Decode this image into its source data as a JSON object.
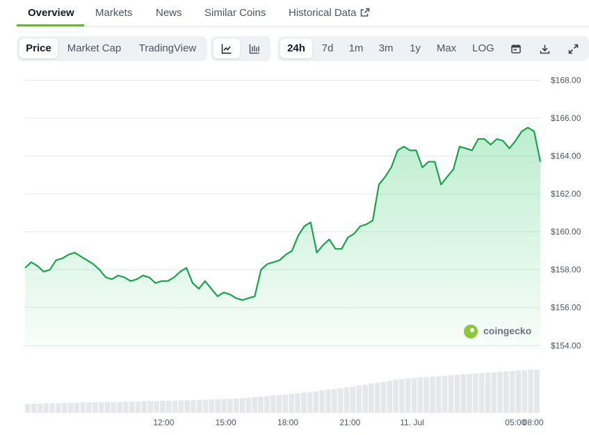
{
  "tabs": [
    {
      "label": "Overview"
    },
    {
      "label": "Markets"
    },
    {
      "label": "News"
    },
    {
      "label": "Similar Coins"
    },
    {
      "label": "Historical Data"
    }
  ],
  "chart_type_tabs": [
    {
      "label": "Price",
      "selected": true
    },
    {
      "label": "Market Cap",
      "selected": false
    },
    {
      "label": "TradingView",
      "selected": false
    }
  ],
  "view_toggle": {
    "line": "line-chart-icon",
    "candle": "candlestick-icon",
    "selected": "line"
  },
  "ranges": [
    {
      "label": "24h",
      "selected": true
    },
    {
      "label": "7d",
      "selected": false
    },
    {
      "label": "1m",
      "selected": false
    },
    {
      "label": "3m",
      "selected": false
    },
    {
      "label": "1y",
      "selected": false
    },
    {
      "label": "Max",
      "selected": false
    },
    {
      "label": "LOG",
      "selected": false
    }
  ],
  "tool_icons": [
    "calendar-icon",
    "download-icon",
    "fullscreen-icon"
  ],
  "watermark": "coingecko",
  "colors": {
    "accent": "#4bcc00",
    "price_line": "#16a34a",
    "volume": "#e5e7eb"
  },
  "chart_data": {
    "type": "line",
    "x_ticks": [
      "12:00",
      "15:00",
      "18:00",
      "21:00",
      "11. Jul",
      "05:00",
      "08:00"
    ],
    "y_ticks": [
      "$154.00",
      "$156.00",
      "$158.00",
      "$160.00",
      "$162.00",
      "$164.00",
      "$166.00",
      "$168.00"
    ],
    "ylim": [
      153.9,
      168.2
    ],
    "x_hours": [
      0,
      0.3,
      0.6,
      0.9,
      1.2,
      1.5,
      1.8,
      2.1,
      2.4,
      2.7,
      3.0,
      3.3,
      3.6,
      3.9,
      4.2,
      4.5,
      4.8,
      5.1,
      5.4,
      5.7,
      6.0,
      6.3,
      6.6,
      6.9,
      7.2,
      7.5,
      7.8,
      8.1,
      8.4,
      8.7,
      9.0,
      9.3,
      9.6,
      9.9,
      10.2,
      10.5,
      10.8,
      11.1,
      11.4,
      11.7,
      12.0,
      12.3,
      12.6,
      12.9,
      13.2,
      13.5,
      13.8,
      14.1,
      14.4,
      14.7,
      15.0,
      15.3,
      15.6,
      15.9,
      16.2,
      16.5,
      16.8,
      17.1,
      17.4,
      17.7,
      18.0,
      18.3,
      18.6,
      18.9,
      19.2,
      19.5,
      19.8,
      20.1,
      20.4,
      20.7,
      21.0,
      21.3,
      21.6,
      21.9,
      22.2,
      22.5,
      22.8,
      23.1,
      23.4,
      23.7,
      24.0,
      24.3,
      24.6,
      24.9
    ],
    "price": [
      158.1,
      158.4,
      158.2,
      157.9,
      158.0,
      158.5,
      158.6,
      158.8,
      158.9,
      158.7,
      158.5,
      158.3,
      158.0,
      157.6,
      157.5,
      157.7,
      157.6,
      157.4,
      157.5,
      157.7,
      157.6,
      157.3,
      157.4,
      157.4,
      157.6,
      157.9,
      158.1,
      157.3,
      157.0,
      157.4,
      157.0,
      156.6,
      156.8,
      156.7,
      156.5,
      156.4,
      156.5,
      156.6,
      158.0,
      158.3,
      158.4,
      158.5,
      158.8,
      159.0,
      159.8,
      160.3,
      160.5,
      158.9,
      159.3,
      159.6,
      159.1,
      159.1,
      159.7,
      159.9,
      160.3,
      160.4,
      160.6,
      162.5,
      162.9,
      163.4,
      164.3,
      164.5,
      164.3,
      164.3,
      163.4,
      163.7,
      163.7,
      162.5,
      162.9,
      163.3,
      164.5,
      164.4,
      164.3,
      164.9,
      164.9,
      164.6,
      164.9,
      164.8,
      164.4,
      164.8,
      165.3,
      165.5,
      165.3,
      163.7
    ],
    "volume": [
      0.2,
      0.21,
      0.21,
      0.22,
      0.22,
      0.22,
      0.23,
      0.23,
      0.23,
      0.24,
      0.24,
      0.24,
      0.25,
      0.25,
      0.25,
      0.25,
      0.26,
      0.26,
      0.26,
      0.27,
      0.27,
      0.27,
      0.28,
      0.28,
      0.28,
      0.29,
      0.29,
      0.29,
      0.3,
      0.3,
      0.31,
      0.31,
      0.32,
      0.32,
      0.33,
      0.34,
      0.35,
      0.36,
      0.37,
      0.38,
      0.4,
      0.41,
      0.42,
      0.44,
      0.45,
      0.47,
      0.48,
      0.5,
      0.52,
      0.54,
      0.55,
      0.57,
      0.59,
      0.61,
      0.63,
      0.65,
      0.68,
      0.7,
      0.72,
      0.74,
      0.76,
      0.78,
      0.8,
      0.81,
      0.82,
      0.83,
      0.84,
      0.85,
      0.86,
      0.87,
      0.88,
      0.89,
      0.9,
      0.91,
      0.92,
      0.93,
      0.94,
      0.95,
      0.96,
      0.97,
      0.98,
      0.99,
      1.0,
      1.0
    ]
  }
}
